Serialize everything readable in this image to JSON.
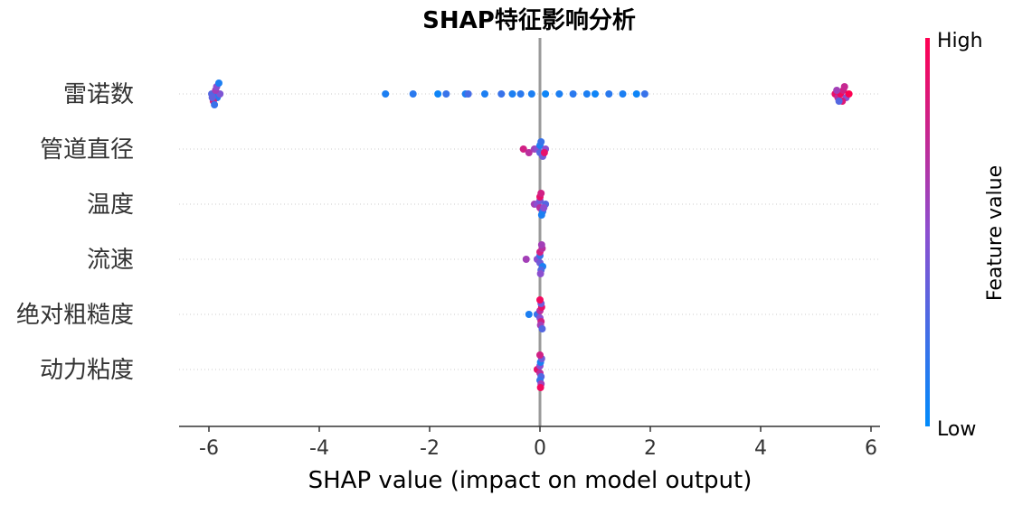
{
  "chart_data": {
    "type": "scatter",
    "subtype": "shap-beeswarm",
    "title": "SHAP特征影响分析",
    "xlabel": "SHAP value (impact on model output)",
    "xlim": [
      -6.5,
      6.2
    ],
    "xticks": [
      -6,
      -4,
      -2,
      0,
      2,
      4,
      6
    ],
    "xtick_labels": [
      "-6",
      "-4",
      "-2",
      "0",
      "2",
      "4",
      "6"
    ],
    "colorbar": {
      "label": "Feature value",
      "high": "High",
      "low": "Low",
      "low_color": "#008bfb",
      "high_color": "#ff0052"
    },
    "features": [
      {
        "name": "雷诺数",
        "points": [
          [
            -5.9,
            0.05
          ],
          [
            -5.85,
            0.15
          ],
          [
            -5.95,
            0.3
          ],
          [
            -5.8,
            0.45
          ],
          [
            -5.88,
            0.6
          ],
          [
            -5.92,
            0.8
          ],
          [
            -5.86,
            0.5
          ],
          [
            -5.9,
            0.2
          ],
          [
            -5.82,
            0.1
          ],
          [
            -5.94,
            0.35
          ],
          [
            -2.8,
            0.1
          ],
          [
            -2.3,
            0.15
          ],
          [
            -1.85,
            0.05
          ],
          [
            -1.7,
            0.2
          ],
          [
            -1.35,
            0.1
          ],
          [
            -1.3,
            0.25
          ],
          [
            -1.0,
            0.1
          ],
          [
            -0.7,
            0.2
          ],
          [
            -0.5,
            0.1
          ],
          [
            -0.35,
            0.15
          ],
          [
            -0.15,
            0.1
          ],
          [
            0.1,
            0.05
          ],
          [
            0.35,
            0.1
          ],
          [
            0.6,
            0.15
          ],
          [
            0.85,
            0.1
          ],
          [
            1.0,
            0.05
          ],
          [
            1.25,
            0.15
          ],
          [
            1.5,
            0.1
          ],
          [
            1.75,
            0.05
          ],
          [
            1.9,
            0.2
          ],
          [
            5.35,
            0.9
          ],
          [
            5.4,
            0.7
          ],
          [
            5.45,
            0.95
          ],
          [
            5.55,
            0.5
          ],
          [
            5.5,
            0.8
          ],
          [
            5.6,
            1.0
          ],
          [
            5.38,
            0.6
          ],
          [
            5.48,
            0.85
          ],
          [
            5.42,
            0.3
          ],
          [
            5.52,
            0.75
          ]
        ]
      },
      {
        "name": "管道直径",
        "points": [
          [
            -0.3,
            0.8
          ],
          [
            -0.2,
            0.7
          ],
          [
            -0.1,
            0.6
          ],
          [
            -0.05,
            0.5
          ],
          [
            0.0,
            0.3
          ],
          [
            0.0,
            0.1
          ],
          [
            0.05,
            0.4
          ],
          [
            0.1,
            0.5
          ],
          [
            0.02,
            0.2
          ],
          [
            0.08,
            0.9
          ]
        ]
      },
      {
        "name": "温度",
        "points": [
          [
            -0.1,
            0.6
          ],
          [
            -0.05,
            0.5
          ],
          [
            0.0,
            0.7
          ],
          [
            0.0,
            0.4
          ],
          [
            0.05,
            0.2
          ],
          [
            0.1,
            0.3
          ],
          [
            0.0,
            0.9
          ],
          [
            0.03,
            0.1
          ],
          [
            0.07,
            0.5
          ],
          [
            0.02,
            0.8
          ]
        ]
      },
      {
        "name": "流速",
        "points": [
          [
            -0.25,
            0.6
          ],
          [
            -0.05,
            0.5
          ],
          [
            0.0,
            0.4
          ],
          [
            0.0,
            0.2
          ],
          [
            0.05,
            0.1
          ],
          [
            0.0,
            0.8
          ],
          [
            0.02,
            0.3
          ],
          [
            0.04,
            0.7
          ],
          [
            0.01,
            0.5
          ],
          [
            0.03,
            0.6
          ]
        ]
      },
      {
        "name": "绝对粗糙度",
        "points": [
          [
            -0.2,
            0.1
          ],
          [
            -0.05,
            0.2
          ],
          [
            0.0,
            0.5
          ],
          [
            0.0,
            0.7
          ],
          [
            0.02,
            0.8
          ],
          [
            0.03,
            0.9
          ],
          [
            0.01,
            0.6
          ],
          [
            0.02,
            0.4
          ],
          [
            0.04,
            0.3
          ],
          [
            0.0,
            0.95
          ]
        ]
      },
      {
        "name": "动力粘度",
        "points": [
          [
            -0.05,
            0.9
          ],
          [
            0.0,
            0.7
          ],
          [
            0.0,
            0.5
          ],
          [
            0.02,
            0.3
          ],
          [
            0.01,
            0.1
          ],
          [
            0.0,
            0.2
          ],
          [
            0.03,
            0.4
          ],
          [
            0.02,
            0.6
          ],
          [
            0.0,
            0.8
          ],
          [
            0.01,
            0.95
          ]
        ]
      }
    ]
  }
}
